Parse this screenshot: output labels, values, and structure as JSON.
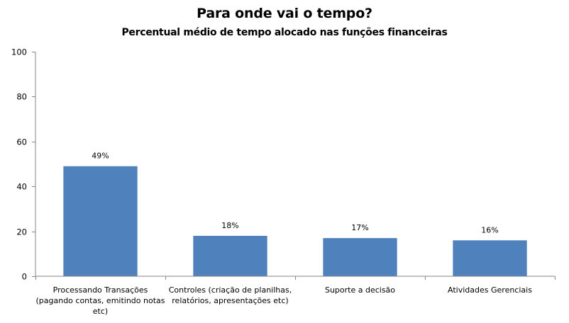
{
  "chart_data": {
    "type": "bar",
    "title": "Para onde vai o tempo?",
    "subtitle": "Percentual médio de tempo alocado nas funções financeiras",
    "categories": [
      "Processando Transações (pagando contas, emitindo notas etc)",
      "Controles (criação de planilhas, relatórios, apresentações etc)",
      "Suporte a decisão",
      "Atividades Gerenciais"
    ],
    "category_label_lines": [
      [
        "Processando Transações",
        "(pagando contas, emitindo notas",
        "etc)"
      ],
      [
        "Controles (criação de planilhas,",
        "relatórios, apresentações etc)"
      ],
      [
        "Suporte a decisão"
      ],
      [
        "Atividades Gerenciais"
      ]
    ],
    "values": [
      49,
      18,
      17,
      16
    ],
    "data_labels": [
      "49%",
      "18%",
      "17%",
      "16%"
    ],
    "ylim": [
      0,
      100
    ],
    "yticks": [
      0,
      20,
      40,
      60,
      80,
      100
    ],
    "grid": false,
    "legend": "none",
    "bar_color": "#4F81BD",
    "axis_color": "#868686"
  }
}
